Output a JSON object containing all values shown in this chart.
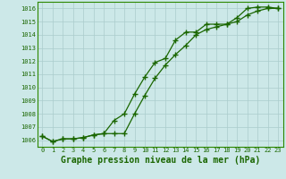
{
  "series1": {
    "x": [
      0,
      1,
      2,
      3,
      4,
      5,
      6,
      7,
      8,
      9,
      10,
      11,
      12,
      13,
      14,
      15,
      16,
      17,
      18,
      19,
      20,
      21,
      22,
      23
    ],
    "y": [
      1006.3,
      1005.9,
      1006.1,
      1006.1,
      1006.2,
      1006.4,
      1006.5,
      1007.5,
      1008.0,
      1009.5,
      1010.8,
      1011.9,
      1012.2,
      1013.6,
      1014.2,
      1014.2,
      1014.8,
      1014.8,
      1014.8,
      1015.3,
      1016.0,
      1016.1,
      1016.1,
      1016.0
    ]
  },
  "series2": {
    "x": [
      0,
      1,
      2,
      3,
      4,
      5,
      6,
      7,
      8,
      9,
      10,
      11,
      12,
      13,
      14,
      15,
      16,
      17,
      18,
      19,
      20,
      21,
      22,
      23
    ],
    "y": [
      1006.3,
      1005.9,
      1006.1,
      1006.1,
      1006.2,
      1006.4,
      1006.5,
      1006.5,
      1006.5,
      1008.0,
      1009.4,
      1010.7,
      1011.7,
      1012.5,
      1013.2,
      1014.0,
      1014.4,
      1014.6,
      1014.8,
      1015.0,
      1015.5,
      1015.8,
      1016.0,
      1016.0
    ]
  },
  "line_color": "#1a6600",
  "marker": "+",
  "markersize": 4,
  "markeredgewidth": 1.0,
  "linewidth": 0.9,
  "xlabel": "Graphe pression niveau de la mer (hPa)",
  "xlabel_fontsize": 7,
  "background_color": "#cce8e8",
  "grid_color": "#aacccc",
  "yticks": [
    1006,
    1007,
    1008,
    1009,
    1010,
    1011,
    1012,
    1013,
    1014,
    1015,
    1016
  ],
  "xticks": [
    0,
    1,
    2,
    3,
    4,
    5,
    6,
    7,
    8,
    9,
    10,
    11,
    12,
    13,
    14,
    15,
    16,
    17,
    18,
    19,
    20,
    21,
    22,
    23
  ],
  "ylim": [
    1005.5,
    1016.5
  ],
  "xlim": [
    -0.5,
    23.5
  ],
  "tick_fontsize": 5,
  "tick_color": "#1a6600",
  "spine_color": "#2d8800"
}
